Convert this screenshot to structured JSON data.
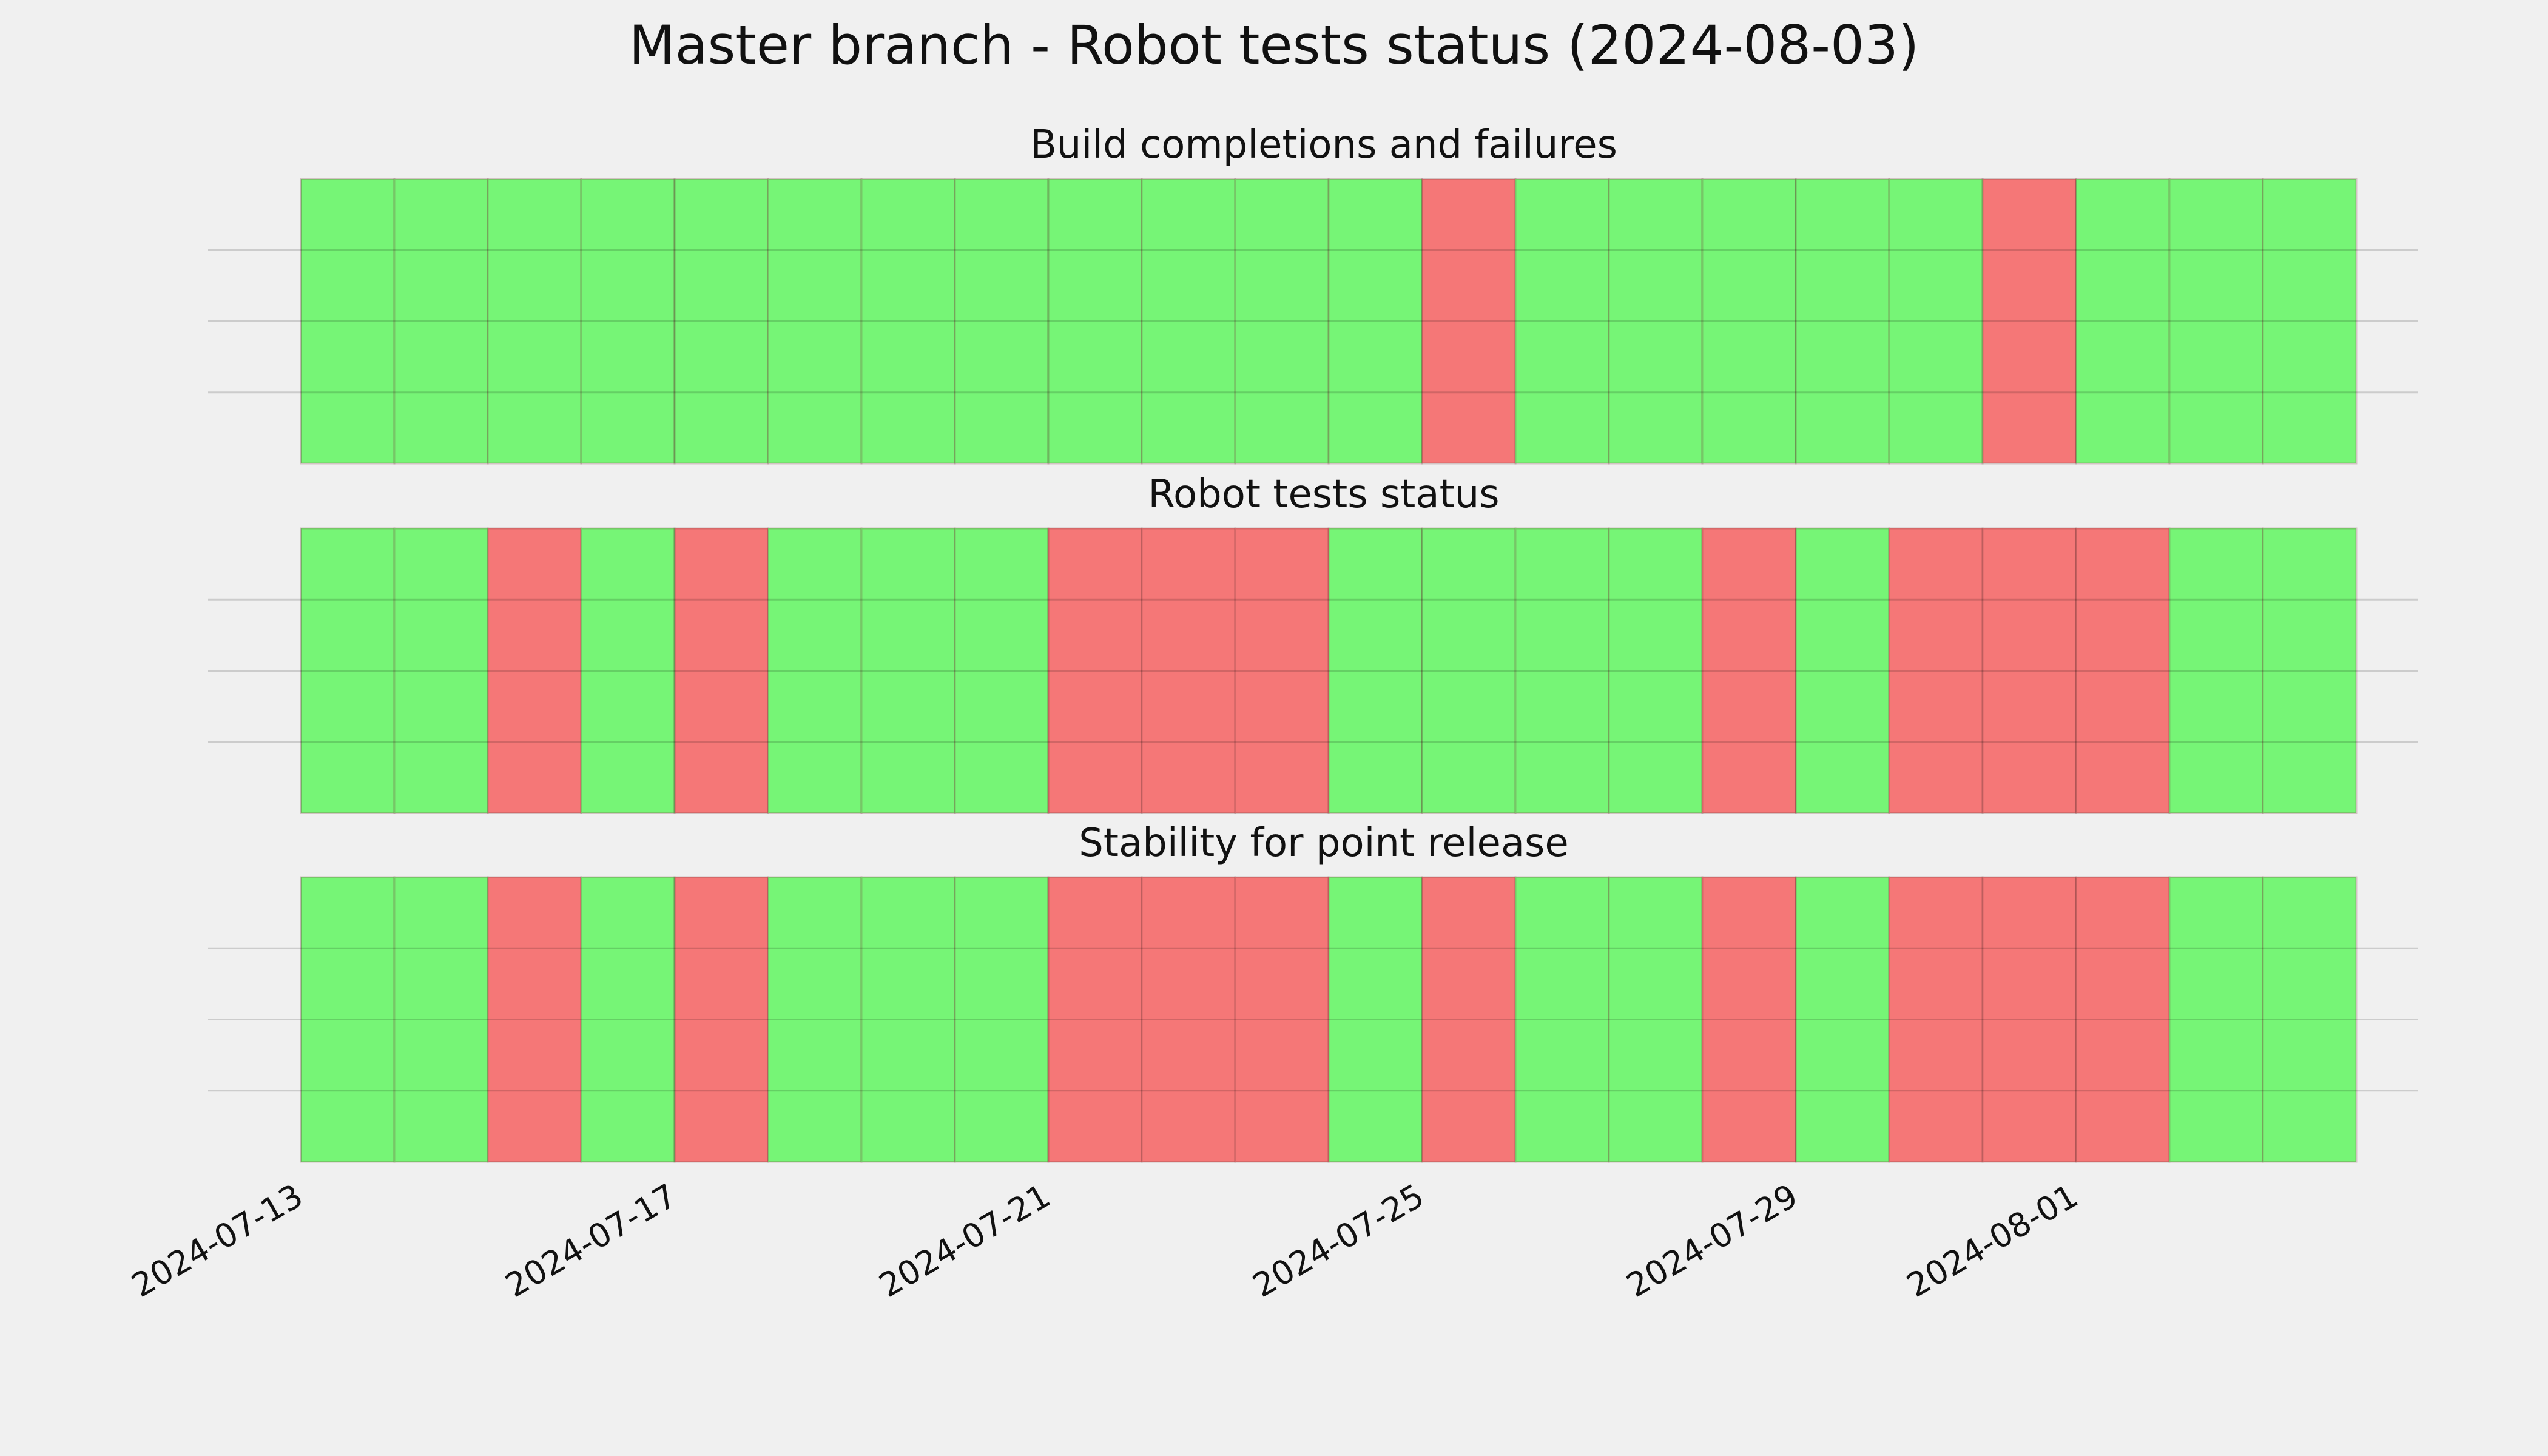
{
  "title": "Master branch - Robot tests status (2024-08-03)",
  "chart_data": [
    {
      "type": "timeline",
      "title": "Build completions and failures",
      "x": [
        "2024-07-13",
        "2024-07-14",
        "2024-07-15",
        "2024-07-16",
        "2024-07-17",
        "2024-07-18",
        "2024-07-19",
        "2024-07-20",
        "2024-07-21",
        "2024-07-22",
        "2024-07-23",
        "2024-07-24",
        "2024-07-25",
        "2024-07-26",
        "2024-07-27",
        "2024-07-28",
        "2024-07-29",
        "2024-07-30",
        "2024-07-31",
        "2024-08-01",
        "2024-08-02",
        "2024-08-03"
      ],
      "values": [
        1,
        1,
        1,
        1,
        1,
        1,
        1,
        1,
        1,
        1,
        1,
        1,
        0,
        1,
        1,
        1,
        1,
        1,
        0,
        1,
        1,
        1
      ],
      "colors": [
        "#f57777",
        "#76f576"
      ],
      "xlim": [
        "2024-07-13",
        "2024-08-04"
      ],
      "xticks": [
        "2024-07-13",
        "2024-07-17",
        "2024-07-21",
        "2024-07-25",
        "2024-07-29",
        "2024-08-01"
      ],
      "ylim": [
        0,
        1
      ],
      "yticks": [
        0.25,
        0.5,
        0.75
      ],
      "grid": true
    },
    {
      "type": "timeline",
      "title": "Robot tests status",
      "x": [
        "2024-07-13",
        "2024-07-14",
        "2024-07-15",
        "2024-07-16",
        "2024-07-17",
        "2024-07-18",
        "2024-07-19",
        "2024-07-20",
        "2024-07-21",
        "2024-07-22",
        "2024-07-23",
        "2024-07-24",
        "2024-07-25",
        "2024-07-26",
        "2024-07-27",
        "2024-07-28",
        "2024-07-29",
        "2024-07-30",
        "2024-07-31",
        "2024-08-01",
        "2024-08-02",
        "2024-08-03"
      ],
      "values": [
        1,
        1,
        0,
        1,
        0,
        1,
        1,
        1,
        0,
        0,
        0,
        1,
        1,
        1,
        1,
        0,
        1,
        0,
        0,
        0,
        1,
        1
      ],
      "colors": [
        "#f57777",
        "#76f576"
      ],
      "xlim": [
        "2024-07-13",
        "2024-08-04"
      ],
      "xticks": [
        "2024-07-13",
        "2024-07-17",
        "2024-07-21",
        "2024-07-25",
        "2024-07-29",
        "2024-08-01"
      ],
      "ylim": [
        0,
        1
      ],
      "yticks": [
        0.25,
        0.5,
        0.75
      ],
      "grid": true
    },
    {
      "type": "timeline",
      "title": "Stability for point release",
      "x": [
        "2024-07-13",
        "2024-07-14",
        "2024-07-15",
        "2024-07-16",
        "2024-07-17",
        "2024-07-18",
        "2024-07-19",
        "2024-07-20",
        "2024-07-21",
        "2024-07-22",
        "2024-07-23",
        "2024-07-24",
        "2024-07-25",
        "2024-07-26",
        "2024-07-27",
        "2024-07-28",
        "2024-07-29",
        "2024-07-30",
        "2024-07-31",
        "2024-08-01",
        "2024-08-02",
        "2024-08-03"
      ],
      "values": [
        1,
        1,
        0,
        1,
        0,
        1,
        1,
        1,
        0,
        0,
        0,
        1,
        0,
        1,
        1,
        0,
        1,
        0,
        0,
        0,
        1,
        1
      ],
      "colors": [
        "#f57777",
        "#76f576"
      ],
      "xlim": [
        "2024-07-13",
        "2024-08-04"
      ],
      "xticks": [
        "2024-07-13",
        "2024-07-17",
        "2024-07-21",
        "2024-07-25",
        "2024-07-29",
        "2024-08-01"
      ],
      "ylim": [
        0,
        1
      ],
      "yticks": [
        0.25,
        0.5,
        0.75
      ],
      "grid": true
    }
  ]
}
